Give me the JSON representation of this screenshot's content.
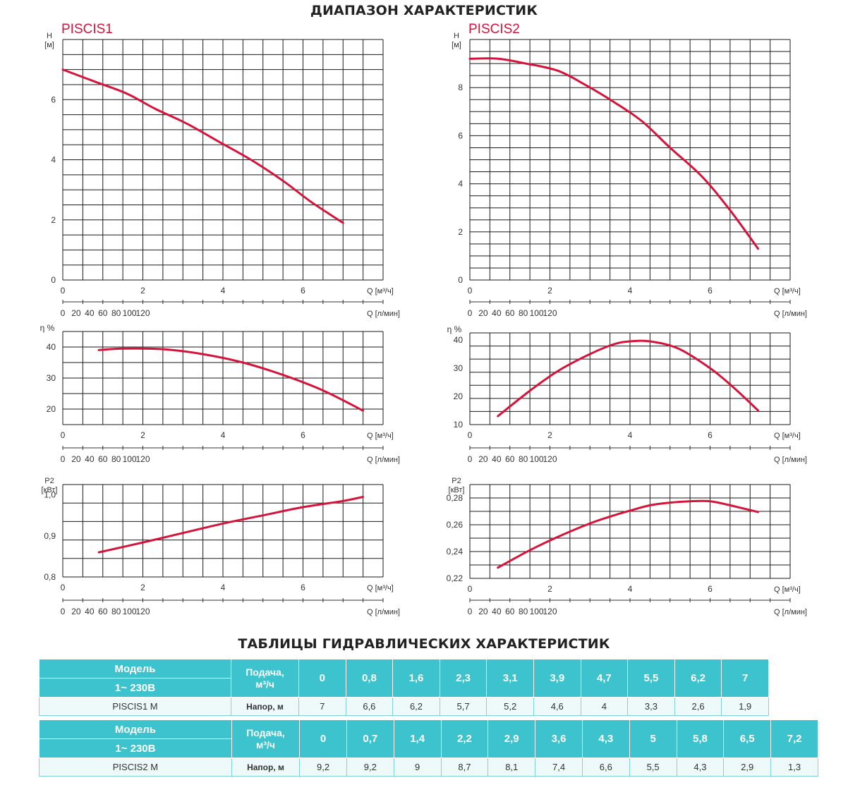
{
  "headings": {
    "range": "ДИАПАЗОН ХАРАКТЕРИСТИК",
    "tables": "ТАБЛИЦЫ ГИДРАВЛИЧЕСКИХ ХАРАКТЕРИСТИК"
  },
  "colors": {
    "curve": "#d4143a",
    "title": "#d4143a",
    "header": "#3cc3cd",
    "cell": "#eef9fa"
  },
  "chart_data": [
    {
      "id": "piscis1-head",
      "type": "line",
      "title": "PISCIS1",
      "ylabel": [
        "H",
        "[м]"
      ],
      "ylim": [
        0,
        8
      ],
      "yticks": [
        0,
        2,
        4,
        6
      ],
      "xlim": [
        0,
        8
      ],
      "xticks": [
        0,
        2,
        4,
        6
      ],
      "xlabel": "Q [м³/ч]",
      "x2ticks": [
        0,
        20,
        40,
        60,
        80,
        100,
        120
      ],
      "x2label": "Q [л/мин]",
      "series": [
        {
          "x": [
            0,
            0.8,
            1.6,
            2.3,
            3.1,
            3.9,
            4.7,
            5.5,
            6.2,
            7
          ],
          "y": [
            7,
            6.6,
            6.2,
            5.7,
            5.2,
            4.6,
            4,
            3.3,
            2.6,
            1.9
          ]
        }
      ]
    },
    {
      "id": "piscis1-eff",
      "type": "line",
      "ylabel": [
        "η %"
      ],
      "ylim": [
        15,
        45
      ],
      "yticks": [
        20,
        30,
        40
      ],
      "xlim": [
        0,
        8
      ],
      "xticks": [
        0,
        2,
        4,
        6
      ],
      "xlabel": "Q [м³/ч]",
      "x2ticks": [
        0,
        20,
        40,
        60,
        80,
        100,
        120
      ],
      "x2label": "Q [л/мин]",
      "series": [
        {
          "x": [
            0.9,
            1.5,
            2.5,
            3.5,
            4.5,
            5.5,
            6.5,
            7.5
          ],
          "y": [
            39,
            39.5,
            39.3,
            37.7,
            35,
            31,
            26,
            19.5
          ]
        }
      ]
    },
    {
      "id": "piscis1-power",
      "type": "line",
      "ylabel": [
        "P2",
        "[кВт]"
      ],
      "ylim": [
        0.8,
        1.025
      ],
      "yticks": [
        "0,8",
        "0,9",
        "1,0"
      ],
      "yticks_num": [
        0.8,
        0.9,
        1.0
      ],
      "xlim": [
        0,
        8
      ],
      "xticks": [
        0,
        2,
        4,
        6
      ],
      "xlabel": "Q [м³/ч]",
      "x2ticks": [
        0,
        20,
        40,
        60,
        80,
        100,
        120
      ],
      "x2label": "Q [л/мин]",
      "series": [
        {
          "x": [
            0.9,
            2,
            3,
            4,
            5,
            6,
            7,
            7.5
          ],
          "y": [
            0.86,
            0.884,
            0.907,
            0.93,
            0.95,
            0.97,
            0.985,
            0.995
          ]
        }
      ]
    },
    {
      "id": "piscis2-head",
      "type": "line",
      "title": "PISCIS2",
      "ylabel": [
        "H",
        "[м]"
      ],
      "ylim": [
        0,
        10
      ],
      "yticks": [
        0,
        2,
        4,
        6,
        8
      ],
      "xlim": [
        0,
        8
      ],
      "xticks": [
        0,
        2,
        4,
        6
      ],
      "xlabel": "Q [м³/ч]",
      "x2ticks": [
        0,
        20,
        40,
        60,
        80,
        100,
        120
      ],
      "x2label": "Q [л/мин]",
      "series": [
        {
          "x": [
            0,
            0.7,
            1.4,
            2.2,
            2.9,
            3.6,
            4.3,
            5,
            5.8,
            6.5,
            7.2
          ],
          "y": [
            9.2,
            9.2,
            9,
            8.7,
            8.1,
            7.4,
            6.6,
            5.5,
            4.3,
            2.9,
            1.3
          ]
        }
      ]
    },
    {
      "id": "piscis2-eff",
      "type": "line",
      "ylabel": [
        "η %"
      ],
      "ylim": [
        10,
        42.5
      ],
      "yticks": [
        10,
        20,
        30,
        40
      ],
      "xlim": [
        0,
        8
      ],
      "xticks": [
        0,
        2,
        4,
        6
      ],
      "xlabel": "Q [м³/ч]",
      "x2ticks": [
        0,
        20,
        40,
        60,
        80,
        100,
        120
      ],
      "x2label": "Q [л/мин]",
      "series": [
        {
          "x": [
            0.7,
            1.5,
            2.2,
            3,
            3.6,
            4,
            4.5,
            5.2,
            6,
            6.6,
            7.2
          ],
          "y": [
            13,
            22,
            29,
            35,
            38.5,
            39.5,
            39.5,
            37,
            30,
            23,
            15
          ]
        }
      ]
    },
    {
      "id": "piscis2-power",
      "type": "line",
      "ylabel": [
        "P2",
        "[кВт]"
      ],
      "ylim": [
        0.22,
        0.29
      ],
      "yticks": [
        "0,22",
        "0,24",
        "0,26",
        "0,28"
      ],
      "yticks_num": [
        0.22,
        0.24,
        0.26,
        0.28
      ],
      "xlim": [
        0,
        8
      ],
      "xticks": [
        0,
        2,
        4,
        6
      ],
      "xlabel": "Q [м³/ч]",
      "x2ticks": [
        0,
        20,
        40,
        60,
        80,
        100,
        120
      ],
      "x2label": "Q [л/мин]",
      "series": [
        {
          "x": [
            0.7,
            1.5,
            2.2,
            3,
            3.6,
            4,
            4.5,
            5,
            5.5,
            6,
            6.5,
            7.2
          ],
          "y": [
            0.228,
            0.241,
            0.251,
            0.261,
            0.267,
            0.2705,
            0.2745,
            0.2765,
            0.2775,
            0.2775,
            0.2745,
            0.2695
          ]
        }
      ]
    }
  ],
  "tables": [
    {
      "model_label": "Модель",
      "voltage": "1~ 230В",
      "flow_label_1": "Подача,",
      "flow_label_2": "м³/ч",
      "name": "PISCIS1 M",
      "head_label": "Напор, м",
      "flow": [
        "0",
        "0,8",
        "1,6",
        "2,3",
        "3,1",
        "3,9",
        "4,7",
        "5,5",
        "6,2",
        "7"
      ],
      "head": [
        "7",
        "6,6",
        "6,2",
        "5,7",
        "5,2",
        "4,6",
        "4",
        "3,3",
        "2,6",
        "1,9"
      ]
    },
    {
      "model_label": "Модель",
      "voltage": "1~ 230В",
      "flow_label_1": "Подача,",
      "flow_label_2": "м³/ч",
      "name": "PISCIS2 M",
      "head_label": "Напор, м",
      "flow": [
        "0",
        "0,7",
        "1,4",
        "2,2",
        "2,9",
        "3,6",
        "4,3",
        "5",
        "5,8",
        "6,5",
        "7,2"
      ],
      "head": [
        "9,2",
        "9,2",
        "9",
        "8,7",
        "8,1",
        "7,4",
        "6,6",
        "5,5",
        "4,3",
        "2,9",
        "1,3"
      ]
    }
  ]
}
